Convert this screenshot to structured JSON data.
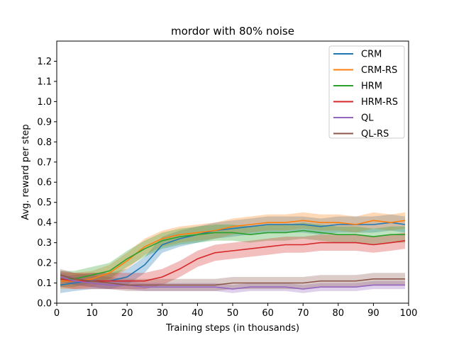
{
  "chart_data": {
    "type": "line",
    "title": "mordor with 80% noise",
    "xlabel": "Training steps (in thousands)",
    "ylabel": "Avg. reward per step",
    "xlim": [
      0,
      100
    ],
    "ylim": [
      0,
      1.3
    ],
    "xticks": [
      0,
      10,
      20,
      30,
      40,
      50,
      60,
      70,
      80,
      90,
      100
    ],
    "yticks": [
      0.0,
      0.1,
      0.2,
      0.3,
      0.4,
      0.5,
      0.6,
      0.7,
      0.8,
      0.9,
      1.0,
      1.1,
      1.2
    ],
    "ytick_labels": [
      "0.0",
      "0.1",
      "0.2",
      "0.3",
      "0.4",
      "0.5",
      "0.6",
      "0.7",
      "0.8",
      "0.9",
      "1.0",
      "1.1",
      "1.2"
    ],
    "grid": false,
    "legend_position": "top-right",
    "x": [
      1,
      5,
      10,
      15,
      20,
      25,
      30,
      35,
      40,
      45,
      50,
      55,
      60,
      65,
      70,
      75,
      80,
      85,
      90,
      95,
      99
    ],
    "series": [
      {
        "name": "CRM",
        "color": "#1f77b4",
        "values": [
          0.09,
          0.1,
          0.11,
          0.11,
          0.13,
          0.19,
          0.29,
          0.32,
          0.34,
          0.36,
          0.37,
          0.38,
          0.39,
          0.39,
          0.39,
          0.38,
          0.39,
          0.39,
          0.39,
          0.4,
          0.39
        ],
        "band": 0.04
      },
      {
        "name": "CRM-RS",
        "color": "#ff7f0e",
        "values": [
          0.11,
          0.11,
          0.12,
          0.15,
          0.21,
          0.28,
          0.32,
          0.34,
          0.35,
          0.36,
          0.38,
          0.39,
          0.4,
          0.4,
          0.41,
          0.4,
          0.4,
          0.39,
          0.41,
          0.4,
          0.41
        ],
        "band": 0.04
      },
      {
        "name": "HRM",
        "color": "#2ca02c",
        "values": [
          0.12,
          0.12,
          0.14,
          0.16,
          0.22,
          0.27,
          0.31,
          0.33,
          0.34,
          0.35,
          0.35,
          0.34,
          0.35,
          0.35,
          0.36,
          0.35,
          0.34,
          0.34,
          0.33,
          0.34,
          0.34
        ],
        "band": 0.04
      },
      {
        "name": "HRM-RS",
        "color": "#d62728",
        "values": [
          0.12,
          0.11,
          0.11,
          0.11,
          0.11,
          0.11,
          0.13,
          0.17,
          0.22,
          0.25,
          0.26,
          0.27,
          0.28,
          0.29,
          0.29,
          0.3,
          0.3,
          0.3,
          0.29,
          0.3,
          0.31
        ],
        "band": 0.04
      },
      {
        "name": "QL",
        "color": "#9467bd",
        "values": [
          0.13,
          0.11,
          0.1,
          0.09,
          0.09,
          0.08,
          0.08,
          0.08,
          0.08,
          0.08,
          0.07,
          0.08,
          0.08,
          0.08,
          0.07,
          0.08,
          0.08,
          0.08,
          0.09,
          0.09,
          0.09
        ],
        "band": 0.02
      },
      {
        "name": "QL-RS",
        "color": "#8c564b",
        "values": [
          0.14,
          0.12,
          0.11,
          0.1,
          0.09,
          0.09,
          0.09,
          0.09,
          0.09,
          0.09,
          0.1,
          0.1,
          0.1,
          0.1,
          0.1,
          0.11,
          0.11,
          0.11,
          0.12,
          0.12,
          0.12
        ],
        "band": 0.03
      }
    ]
  }
}
